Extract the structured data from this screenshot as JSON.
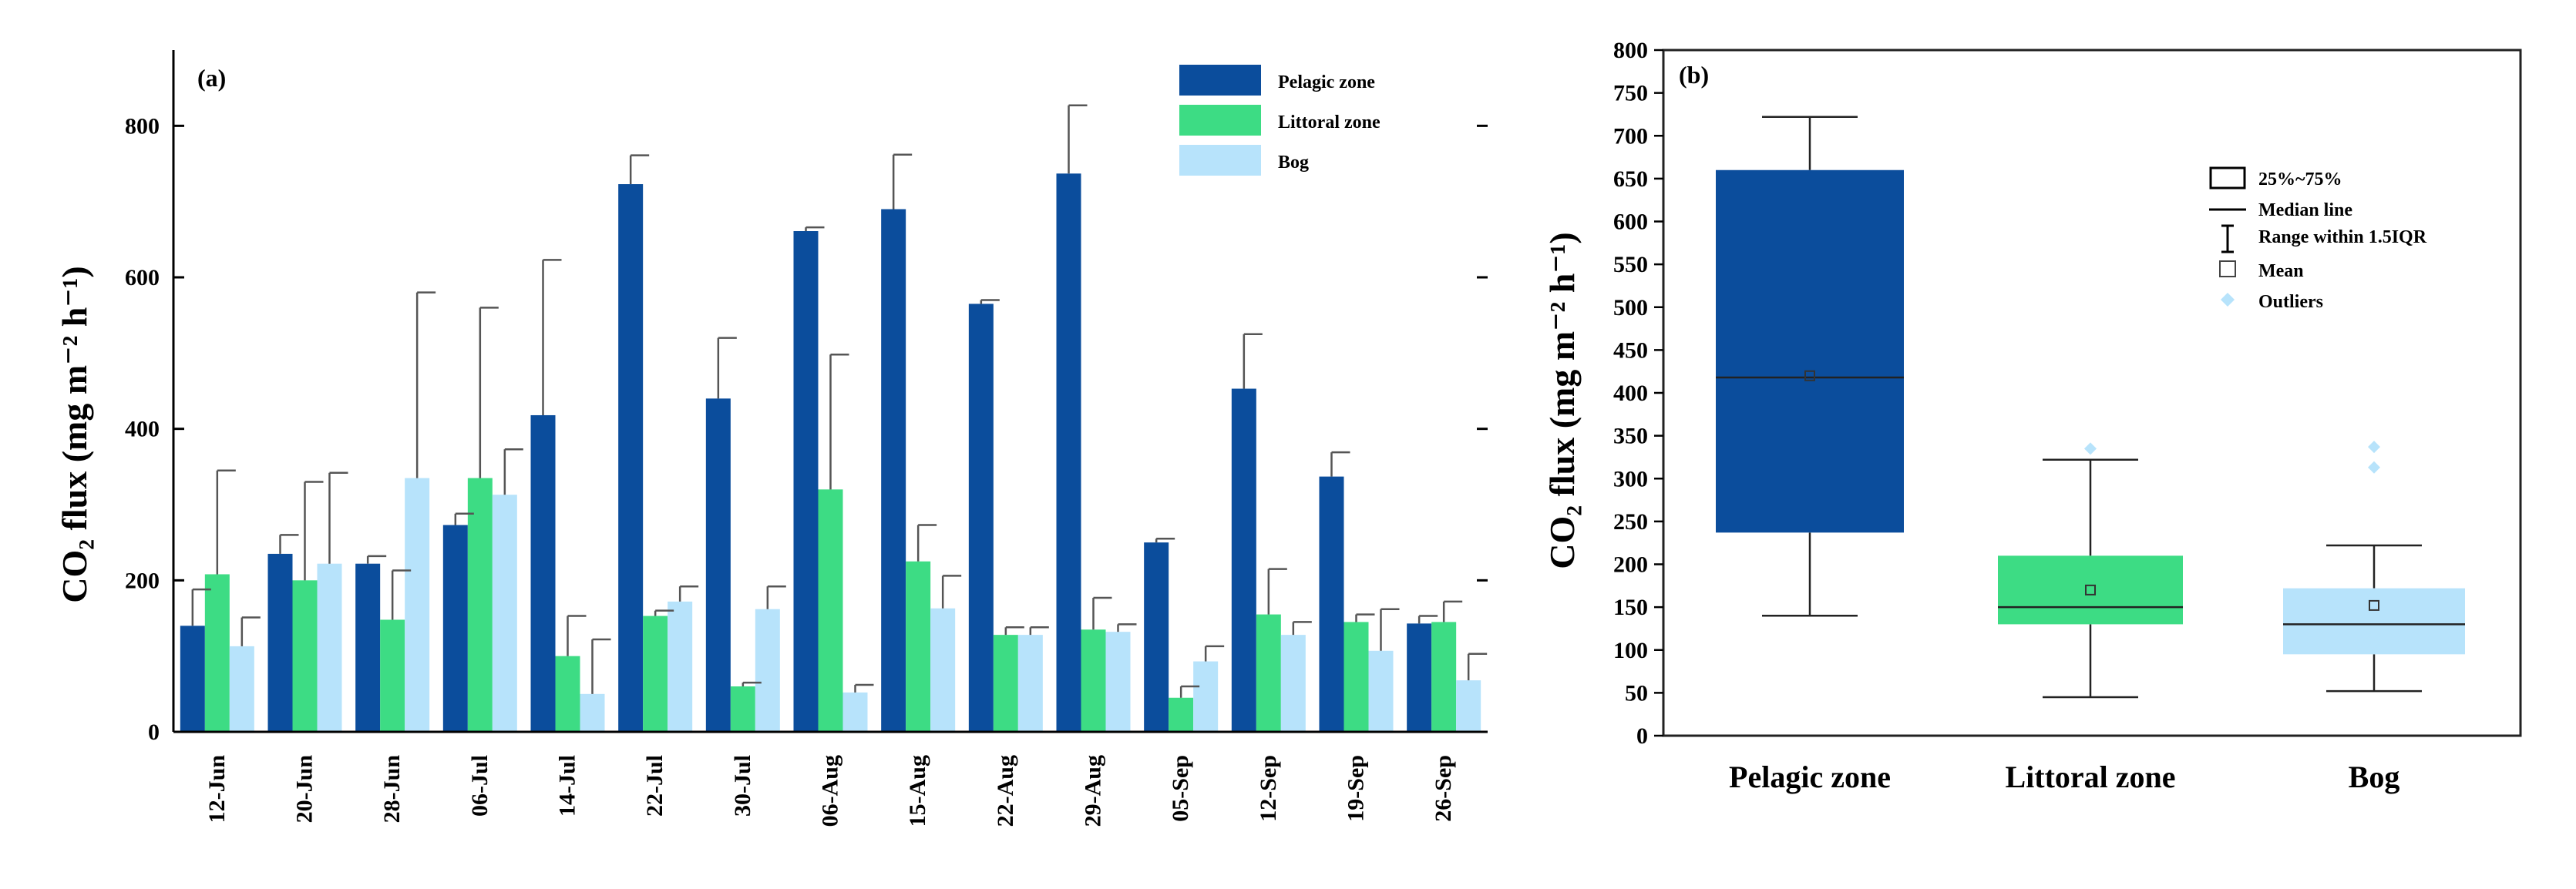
{
  "chart_data": [
    {
      "panel": "(a)",
      "type": "bar",
      "title": "",
      "xlabel": "",
      "ylabel": "CO₂ flux (mg m⁻² h⁻¹)",
      "ylim": [
        0,
        900
      ],
      "yticks": [
        "0",
        "200",
        "400",
        "600",
        "800"
      ],
      "categories": [
        "12-Jun",
        "20-Jun",
        "28-Jun",
        "06-Jul",
        "14-Jul",
        "22-Jul",
        "30-Jul",
        "06-Aug",
        "15-Aug",
        "22-Aug",
        "29-Aug",
        "05-Sep",
        "12-Sep",
        "19-Sep",
        "26-Sep"
      ],
      "series": [
        {
          "name": "Pelagic zone",
          "color": "#0b4d9c",
          "values": [
            140,
            235,
            222,
            273,
            418,
            723,
            440,
            661,
            690,
            565,
            737,
            250,
            453,
            337,
            143
          ],
          "errors": [
            48,
            25,
            10,
            15,
            205,
            38,
            80,
            5,
            72,
            5,
            90,
            5,
            72,
            32,
            10
          ]
        },
        {
          "name": "Littoral zone",
          "color": "#3ddc84",
          "values": [
            208,
            200,
            148,
            335,
            100,
            153,
            60,
            320,
            225,
            128,
            135,
            45,
            155,
            145,
            145
          ],
          "errors": [
            137,
            130,
            65,
            225,
            53,
            7,
            5,
            178,
            48,
            10,
            42,
            15,
            60,
            10,
            27
          ]
        },
        {
          "name": "Bog",
          "color": "#b7e3fb",
          "values": [
            113,
            222,
            335,
            313,
            50,
            172,
            162,
            52,
            163,
            128,
            132,
            93,
            128,
            107,
            68
          ],
          "errors": [
            38,
            120,
            245,
            60,
            72,
            20,
            30,
            10,
            43,
            10,
            10,
            20,
            17,
            55,
            35
          ]
        }
      ],
      "legend_position": "top-right"
    },
    {
      "panel": "(b)",
      "type": "box",
      "title": "",
      "xlabel": "",
      "ylabel": "CO₂ flux (mg m⁻² h⁻¹)",
      "ylim": [
        0,
        800
      ],
      "yticks": [
        "0",
        "50",
        "100",
        "150",
        "200",
        "250",
        "300",
        "350",
        "400",
        "450",
        "500",
        "550",
        "600",
        "650",
        "700",
        "750",
        "800"
      ],
      "categories": [
        "Pelagic zone",
        "Littoral zone",
        "Bog"
      ],
      "boxes": [
        {
          "name": "Pelagic zone",
          "color": "#0b4d9c",
          "whisker_low": 140,
          "q1": 237,
          "median": 418,
          "q3": 660,
          "whisker_high": 722,
          "mean": 420,
          "outliers": []
        },
        {
          "name": "Littoral zone",
          "color": "#3ddc84",
          "whisker_low": 45,
          "q1": 130,
          "median": 150,
          "q3": 210,
          "whisker_high": 322,
          "mean": 170,
          "outliers": [
            335
          ]
        },
        {
          "name": "Bog",
          "color": "#b7e3fb",
          "whisker_low": 52,
          "q1": 95,
          "median": 130,
          "q3": 172,
          "whisker_high": 222,
          "mean": 152,
          "outliers": [
            313,
            337
          ]
        }
      ],
      "legend": [
        "25%~75%",
        "Median line",
        "Range within 1.5IQR",
        "Mean",
        "Outliers"
      ],
      "outlier_color": "#b7e3fb",
      "legend_position": "top-right"
    }
  ]
}
